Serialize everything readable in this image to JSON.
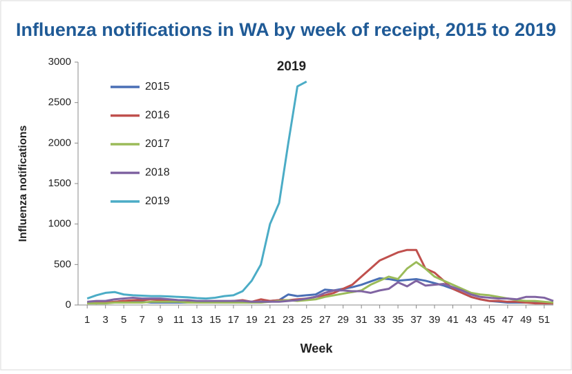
{
  "chart_data": {
    "type": "line",
    "title": "Influenza notifications in WA by week of receipt, 2015 to 2019",
    "xlabel": "Week",
    "ylabel": "Influenza notifications",
    "annotation": "2019",
    "x": [
      1,
      2,
      3,
      4,
      5,
      6,
      7,
      8,
      9,
      10,
      11,
      12,
      13,
      14,
      15,
      16,
      17,
      18,
      19,
      20,
      21,
      22,
      23,
      24,
      25,
      26,
      27,
      28,
      29,
      30,
      31,
      32,
      33,
      34,
      35,
      36,
      37,
      38,
      39,
      40,
      41,
      42,
      43,
      44,
      45,
      46,
      47,
      48,
      49,
      50,
      51,
      52
    ],
    "xlim": [
      0,
      52
    ],
    "xticks": [
      1,
      3,
      5,
      7,
      9,
      11,
      13,
      15,
      17,
      19,
      21,
      23,
      25,
      27,
      29,
      31,
      33,
      35,
      37,
      39,
      41,
      43,
      45,
      47,
      49,
      51
    ],
    "ylim": [
      0,
      3000
    ],
    "yticks": [
      0,
      500,
      1000,
      1500,
      2000,
      2500,
      3000
    ],
    "grid": false,
    "legend": "upper left",
    "series": [
      {
        "name": "2015",
        "color": "#4a6fb5",
        "values": [
          30,
          20,
          30,
          40,
          50,
          40,
          40,
          30,
          30,
          30,
          30,
          30,
          40,
          40,
          40,
          40,
          50,
          40,
          40,
          40,
          50,
          60,
          130,
          110,
          120,
          130,
          190,
          180,
          200,
          220,
          250,
          290,
          330,
          320,
          300,
          310,
          320,
          300,
          270,
          240,
          200,
          150,
          100,
          70,
          50,
          40,
          30,
          30,
          30,
          30,
          20,
          20
        ]
      },
      {
        "name": "2016",
        "color": "#c0504d",
        "values": [
          20,
          30,
          30,
          40,
          50,
          60,
          60,
          70,
          60,
          50,
          50,
          40,
          30,
          40,
          40,
          40,
          50,
          60,
          40,
          70,
          50,
          60,
          60,
          70,
          80,
          100,
          120,
          150,
          200,
          250,
          350,
          450,
          550,
          600,
          650,
          680,
          680,
          450,
          400,
          300,
          200,
          150,
          100,
          70,
          50,
          50,
          40,
          40,
          30,
          20,
          20,
          20
        ]
      },
      {
        "name": "2017",
        "color": "#9bbb59",
        "values": [
          20,
          20,
          20,
          30,
          30,
          30,
          30,
          40,
          40,
          40,
          40,
          30,
          30,
          30,
          30,
          30,
          30,
          30,
          30,
          30,
          40,
          50,
          60,
          50,
          60,
          70,
          100,
          120,
          140,
          160,
          180,
          250,
          300,
          350,
          320,
          450,
          530,
          450,
          350,
          300,
          250,
          200,
          150,
          130,
          120,
          100,
          80,
          60,
          50,
          50,
          40,
          30
        ]
      },
      {
        "name": "2018",
        "color": "#8064a2",
        "values": [
          40,
          50,
          50,
          70,
          80,
          90,
          80,
          80,
          80,
          70,
          60,
          60,
          50,
          50,
          50,
          50,
          50,
          50,
          40,
          40,
          40,
          40,
          50,
          60,
          80,
          100,
          150,
          180,
          180,
          170,
          170,
          150,
          180,
          200,
          280,
          230,
          300,
          240,
          250,
          260,
          220,
          180,
          130,
          100,
          90,
          80,
          80,
          70,
          100,
          100,
          90,
          50
        ]
      },
      {
        "name": "2019",
        "color": "#4bacc6",
        "values": [
          80,
          120,
          150,
          160,
          130,
          120,
          115,
          110,
          110,
          105,
          100,
          95,
          85,
          80,
          90,
          110,
          120,
          170,
          300,
          500,
          1000,
          1260,
          2000,
          2700,
          2760,
          null,
          null,
          null,
          null,
          null,
          null,
          null,
          null,
          null,
          null,
          null,
          null,
          null,
          null,
          null,
          null,
          null,
          null,
          null,
          null,
          null,
          null,
          null,
          null,
          null,
          null,
          null
        ]
      }
    ]
  }
}
